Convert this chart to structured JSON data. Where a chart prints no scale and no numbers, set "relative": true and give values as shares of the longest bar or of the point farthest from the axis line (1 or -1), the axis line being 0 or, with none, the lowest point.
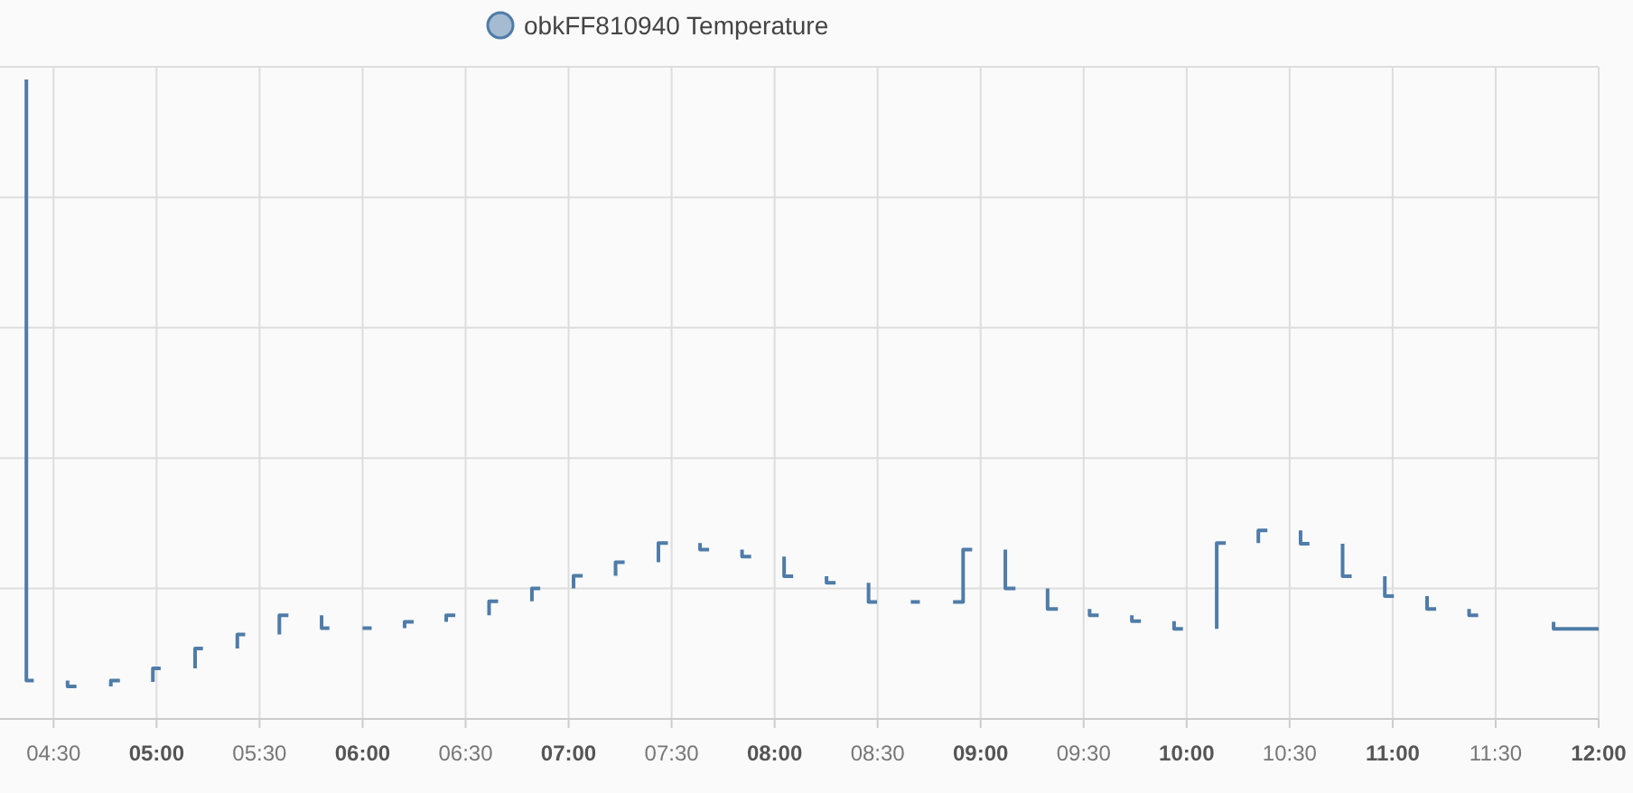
{
  "chart_data": {
    "type": "line",
    "relative": true,
    "grid": true,
    "legend": "top",
    "xlim": [
      4.24,
      12.0
    ],
    "xticks": [
      {
        "value": 4.5,
        "label": "04:30"
      },
      {
        "value": 5,
        "label": "05:00"
      },
      {
        "value": 5.5,
        "label": "05:30"
      },
      {
        "value": 6,
        "label": "06:00"
      },
      {
        "value": 6.5,
        "label": "06:30"
      },
      {
        "value": 7,
        "label": "07:00"
      },
      {
        "value": 7.5,
        "label": "07:30"
      },
      {
        "value": 8,
        "label": "08:00"
      },
      {
        "value": 8.5,
        "label": "08:30"
      },
      {
        "value": 9,
        "label": "09:00"
      },
      {
        "value": 9.5,
        "label": "09:30"
      },
      {
        "value": 10,
        "label": "10:00"
      },
      {
        "value": 10.5,
        "label": "10:30"
      },
      {
        "value": 11,
        "label": "11:00"
      },
      {
        "value": 11.5,
        "label": "11:30"
      },
      {
        "value": 12,
        "label": "12:00"
      }
    ],
    "series": [
      {
        "name": "obkFF810940 Temperature",
        "color": "#4f7ca8",
        "x": [
          4.368,
          4.368,
          4.404
        ],
        "values": [
          1,
          0.06,
          0.06
        ]
      },
      {
        "color": "#4f7ca8",
        "x": [
          4.568,
          4.568,
          4.611
        ],
        "values": [
          0.06,
          0.051,
          0.051
        ]
      },
      {
        "color": "#4f7ca8",
        "x": [
          4.778,
          4.778,
          4.822
        ],
        "values": [
          0.051,
          0.06,
          0.06
        ]
      },
      {
        "color": "#4f7ca8",
        "x": [
          4.982,
          4.982,
          5.02
        ],
        "values": [
          0.058,
          0.079,
          0.079
        ]
      },
      {
        "color": "#4f7ca8",
        "x": [
          5.187,
          5.187,
          5.225
        ],
        "values": [
          0.079,
          0.11,
          0.11
        ]
      },
      {
        "color": "#4f7ca8",
        "x": [
          5.392,
          5.392,
          5.43
        ],
        "values": [
          0.11,
          0.132,
          0.132
        ]
      },
      {
        "color": "#4f7ca8",
        "x": [
          5.596,
          5.596,
          5.64
        ],
        "values": [
          0.132,
          0.162,
          0.162
        ]
      },
      {
        "color": "#4f7ca8",
        "x": [
          5.801,
          5.801,
          5.839
        ],
        "values": [
          0.162,
          0.142,
          0.142
        ]
      },
      {
        "color": "#4f7ca8",
        "x": [
          6.0,
          6.044
        ],
        "values": [
          0.142,
          0.142
        ]
      },
      {
        "color": "#4f7ca8",
        "x": [
          6.204,
          6.204,
          6.248
        ],
        "values": [
          0.142,
          0.152,
          0.152
        ]
      },
      {
        "color": "#4f7ca8",
        "x": [
          6.406,
          6.406,
          6.45
        ],
        "values": [
          0.152,
          0.162,
          0.162
        ]
      },
      {
        "color": "#4f7ca8",
        "x": [
          6.614,
          6.614,
          6.658
        ],
        "values": [
          0.162,
          0.184,
          0.184
        ]
      },
      {
        "color": "#4f7ca8",
        "x": [
          6.822,
          6.822,
          6.862
        ],
        "values": [
          0.184,
          0.204,
          0.204
        ]
      },
      {
        "color": "#4f7ca8",
        "x": [
          7.024,
          7.024,
          7.068
        ],
        "values": [
          0.204,
          0.224,
          0.224
        ]
      },
      {
        "color": "#4f7ca8",
        "x": [
          7.228,
          7.228,
          7.272
        ],
        "values": [
          0.224,
          0.245,
          0.245
        ]
      },
      {
        "color": "#4f7ca8",
        "x": [
          7.436,
          7.436,
          7.482
        ],
        "values": [
          0.245,
          0.275,
          0.275
        ]
      },
      {
        "color": "#4f7ca8",
        "x": [
          7.638,
          7.638,
          7.682
        ],
        "values": [
          0.275,
          0.265,
          0.265
        ]
      },
      {
        "color": "#4f7ca8",
        "x": [
          7.842,
          7.842,
          7.886
        ],
        "values": [
          0.265,
          0.254,
          0.254
        ]
      },
      {
        "color": "#4f7ca8",
        "x": [
          8.046,
          8.046,
          8.09
        ],
        "values": [
          0.254,
          0.223,
          0.223
        ]
      },
      {
        "color": "#4f7ca8",
        "x": [
          8.252,
          8.252,
          8.296
        ],
        "values": [
          0.223,
          0.213,
          0.213
        ]
      },
      {
        "color": "#4f7ca8",
        "x": [
          8.456,
          8.456,
          8.497
        ],
        "values": [
          0.213,
          0.183,
          0.183
        ]
      },
      {
        "color": "#4f7ca8",
        "x": [
          8.661,
          8.705
        ],
        "values": [
          0.183,
          0.183
        ]
      },
      {
        "color": "#4f7ca8",
        "x": [
          8.866,
          8.915,
          8.915,
          8.959
        ],
        "values": [
          0.183,
          0.183,
          0.265,
          0.265
        ]
      },
      {
        "color": "#4f7ca8",
        "x": [
          9.12,
          9.12,
          9.169
        ],
        "values": [
          0.265,
          0.204,
          0.204
        ]
      },
      {
        "color": "#4f7ca8",
        "x": [
          9.325,
          9.325,
          9.375
        ],
        "values": [
          0.204,
          0.172,
          0.172
        ]
      },
      {
        "color": "#4f7ca8",
        "x": [
          9.529,
          9.529,
          9.573
        ],
        "values": [
          0.172,
          0.162,
          0.162
        ]
      },
      {
        "color": "#4f7ca8",
        "x": [
          9.734,
          9.734,
          9.778
        ],
        "values": [
          0.162,
          0.153,
          0.153
        ]
      },
      {
        "color": "#4f7ca8",
        "x": [
          9.939,
          9.939,
          9.982
        ],
        "values": [
          0.153,
          0.141,
          0.141
        ]
      },
      {
        "color": "#4f7ca8",
        "x": [
          10.146,
          10.146,
          10.19
        ],
        "values": [
          0.141,
          0.275,
          0.275
        ]
      },
      {
        "color": "#4f7ca8",
        "x": [
          10.348,
          10.348,
          10.392
        ],
        "values": [
          0.275,
          0.295,
          0.295
        ]
      },
      {
        "color": "#4f7ca8",
        "x": [
          10.553,
          10.553,
          10.596
        ],
        "values": [
          0.295,
          0.274,
          0.274
        ]
      },
      {
        "color": "#4f7ca8",
        "x": [
          10.757,
          10.757,
          10.801
        ],
        "values": [
          0.274,
          0.223,
          0.223
        ]
      },
      {
        "color": "#4f7ca8",
        "x": [
          10.962,
          10.962,
          11.006
        ],
        "values": [
          0.223,
          0.192,
          0.192
        ]
      },
      {
        "color": "#4f7ca8",
        "x": [
          11.167,
          11.167,
          11.211
        ],
        "values": [
          0.192,
          0.172,
          0.172
        ]
      },
      {
        "color": "#4f7ca8",
        "x": [
          11.371,
          11.371,
          11.415
        ],
        "values": [
          0.172,
          0.162,
          0.162
        ]
      },
      {
        "color": "#4f7ca8",
        "x": [
          11.781,
          11.781,
          12.0
        ],
        "values": [
          0.152,
          0.141,
          0.141
        ]
      }
    ]
  }
}
